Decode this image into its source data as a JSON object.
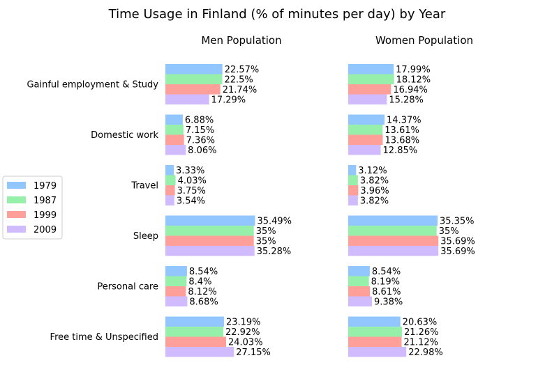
{
  "chart_data": {
    "type": "bar",
    "orientation": "horizontal",
    "title": "Time Usage in Finland (% of minutes per day) by Year",
    "value_suffix": "%",
    "categories": [
      "Gainful employment & Study",
      "Domestic work",
      "Travel",
      "Sleep",
      "Personal care",
      "Free time & Unspecified"
    ],
    "panels": [
      {
        "title": "Men Population",
        "series": [
          {
            "name": "1979",
            "values": [
              22.57,
              6.88,
              3.33,
              35.49,
              8.54,
              23.19
            ]
          },
          {
            "name": "1987",
            "values": [
              22.5,
              7.15,
              4.03,
              35.0,
              8.4,
              22.92
            ]
          },
          {
            "name": "1999",
            "values": [
              21.74,
              7.36,
              3.75,
              35.0,
              8.12,
              24.03
            ]
          },
          {
            "name": "2009",
            "values": [
              17.29,
              8.06,
              3.54,
              35.28,
              8.68,
              27.15
            ]
          }
        ]
      },
      {
        "title": "Women Population",
        "series": [
          {
            "name": "1979",
            "values": [
              17.99,
              14.37,
              3.12,
              35.35,
              8.54,
              20.63
            ]
          },
          {
            "name": "1987",
            "values": [
              18.12,
              13.61,
              3.82,
              35.0,
              8.19,
              21.26
            ]
          },
          {
            "name": "1999",
            "values": [
              16.94,
              13.68,
              3.96,
              35.69,
              8.61,
              21.12
            ]
          },
          {
            "name": "2009",
            "values": [
              15.28,
              12.85,
              3.82,
              35.69,
              9.38,
              22.98
            ]
          }
        ]
      }
    ],
    "legend": {
      "placement": "left",
      "entries": [
        "1979",
        "1987",
        "1999",
        "2009"
      ]
    },
    "colors": [
      "#92c6ff",
      "#97f0aa",
      "#ff9f9a",
      "#d0bbff"
    ],
    "grid": false,
    "axes_visible": false
  }
}
